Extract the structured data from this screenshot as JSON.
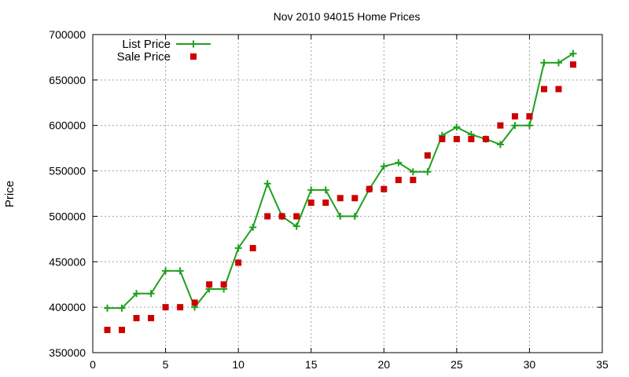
{
  "chart_data": {
    "type": "line",
    "title": "Nov 2010 94015 Home Prices",
    "xlabel": "",
    "ylabel": "Price",
    "xlim": [
      0,
      35
    ],
    "ylim": [
      350000,
      700000
    ],
    "xticks": [
      "0",
      "5",
      "10",
      "15",
      "20",
      "25",
      "30",
      "35"
    ],
    "yticks": [
      "350000",
      "400000",
      "450000",
      "500000",
      "550000",
      "600000",
      "650000",
      "700000"
    ],
    "grid": true,
    "legend_position": "top-left",
    "x": [
      1,
      2,
      3,
      4,
      5,
      6,
      7,
      8,
      9,
      10,
      11,
      12,
      13,
      14,
      15,
      16,
      17,
      18,
      19,
      20,
      21,
      22,
      23,
      24,
      25,
      26,
      27,
      28,
      29,
      30,
      31,
      32,
      33
    ],
    "series": [
      {
        "name": "List Price",
        "style": "line-with-plus-markers",
        "color": "#1fa01f",
        "values": [
          399000,
          399000,
          415000,
          415000,
          440000,
          440000,
          400000,
          420000,
          420000,
          465000,
          488000,
          536000,
          500000,
          489000,
          529000,
          529000,
          500000,
          500000,
          530000,
          555000,
          559000,
          549000,
          549000,
          589000,
          598000,
          590000,
          585000,
          579000,
          600000,
          600000,
          669000,
          669000,
          679000
        ]
      },
      {
        "name": "Sale Price",
        "style": "square-markers",
        "color": "#cc0000",
        "values": [
          375000,
          375000,
          388000,
          388000,
          400000,
          400000,
          405000,
          425000,
          425000,
          449000,
          465000,
          500000,
          500000,
          500000,
          515000,
          515000,
          520000,
          520000,
          530000,
          530000,
          540000,
          540000,
          567000,
          585000,
          585000,
          585000,
          585000,
          600000,
          610000,
          610000,
          640000,
          640000,
          667000
        ]
      }
    ]
  }
}
